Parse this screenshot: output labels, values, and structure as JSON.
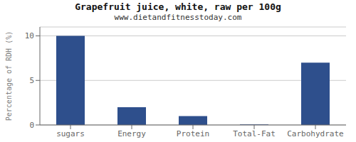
{
  "chart_data": {
    "type": "bar",
    "title": "Grapefruit juice, white, raw per 100g",
    "subtitle": "www.dietandfitnesstoday.com",
    "categories": [
      "sugars",
      "Energy",
      "Protein",
      "Total-Fat",
      "Carbohydrate"
    ],
    "values": [
      10,
      2,
      1,
      0.05,
      7
    ],
    "color": "#2e4f8c",
    "ylabel": "Percentage of RDH (%)",
    "ylim": [
      0,
      11
    ],
    "yticks": [
      0,
      5,
      10
    ],
    "grid": true
  }
}
